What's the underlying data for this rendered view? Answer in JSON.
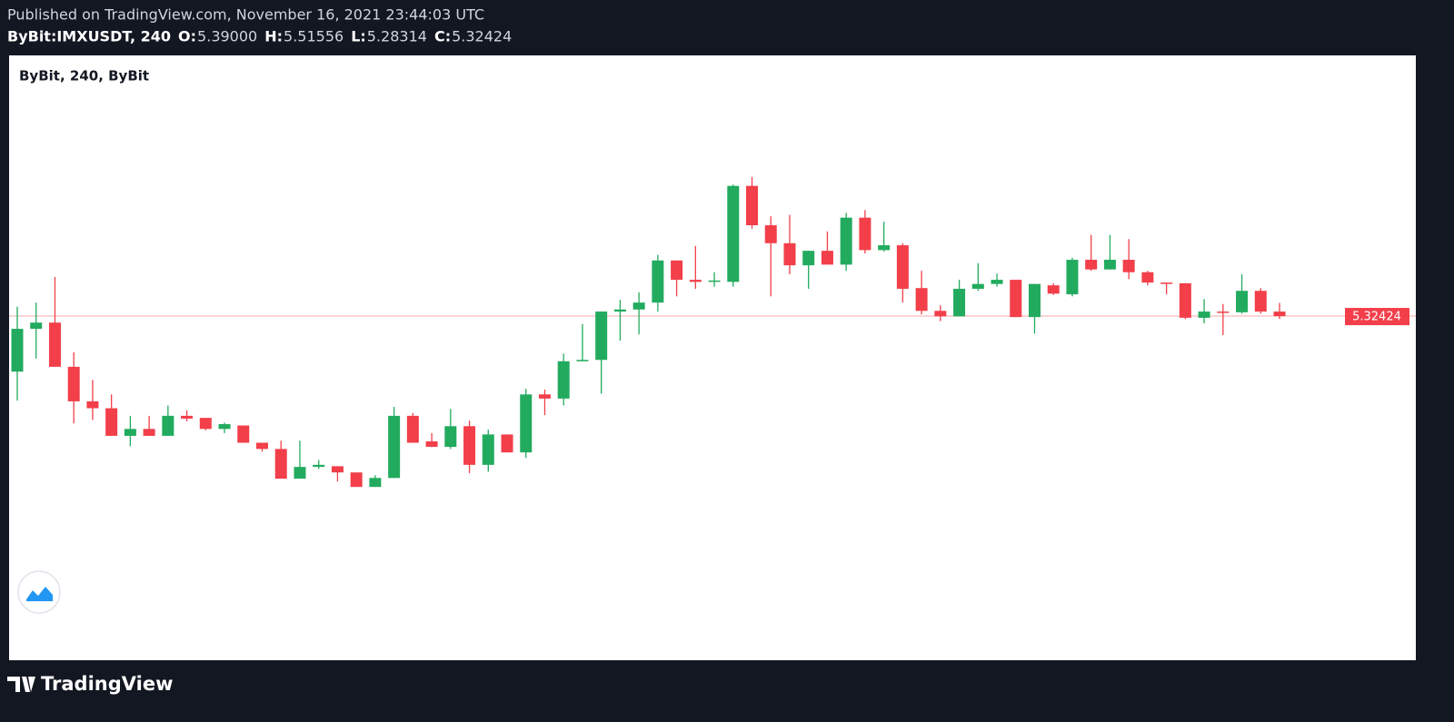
{
  "header": {
    "published": "Published on TradingView.com, November 16, 2021 23:44:03 UTC",
    "symbol": "ByBit:IMXUSDT, 240",
    "ohlc": [
      {
        "key": "O:",
        "text": "5.39000"
      },
      {
        "key": "H:",
        "text": "5.51556"
      },
      {
        "key": "L:",
        "text": "5.28314"
      },
      {
        "key": "C:",
        "text": "5.32424"
      }
    ]
  },
  "footer": {
    "brand": "TradingView"
  },
  "chart_data": {
    "type": "candlestick",
    "title": "ByBit, 240, ByBit",
    "up_color": "#22ab5e",
    "down_color": "#f23f4a",
    "ylim": [
      0.34,
      9.1
    ],
    "open": [
      4.52,
      5.14,
      5.23,
      4.59,
      4.09,
      3.99,
      3.59,
      3.69,
      3.59,
      3.88,
      3.85,
      3.69,
      3.74,
      3.49,
      3.4,
      2.97,
      3.14,
      3.15,
      3.06,
      2.85,
      2.98,
      3.88,
      3.51,
      3.43,
      3.73,
      3.17,
      3.61,
      3.35,
      4.19,
      4.13,
      4.67,
      4.69,
      5.39,
      5.42,
      5.52,
      6.13,
      5.85,
      5.82,
      5.82,
      7.21,
      6.64,
      6.38,
      6.06,
      6.27,
      6.07,
      6.75,
      6.28,
      6.35,
      5.73,
      5.4,
      5.32,
      5.72,
      5.79,
      5.85,
      5.31,
      5.77,
      5.64,
      6.14,
      6.0,
      6.14,
      5.96,
      5.81,
      5.8,
      5.3,
      5.39,
      5.38,
      5.69,
      5.39
    ],
    "high": [
      5.46,
      5.52,
      5.89,
      4.8,
      4.4,
      4.19,
      3.88,
      3.88,
      4.03,
      3.96,
      3.85,
      3.78,
      3.74,
      3.49,
      3.52,
      3.52,
      3.24,
      3.15,
      3.06,
      3.02,
      4.01,
      3.92,
      3.63,
      3.98,
      3.81,
      3.68,
      3.61,
      4.27,
      4.26,
      4.78,
      5.21,
      5.39,
      5.56,
      5.67,
      6.21,
      6.13,
      6.34,
      5.96,
      7.23,
      7.34,
      6.77,
      6.79,
      6.27,
      6.55,
      6.82,
      6.86,
      6.69,
      6.38,
      5.98,
      5.48,
      5.85,
      6.09,
      5.94,
      5.85,
      5.79,
      5.8,
      6.17,
      6.5,
      6.5,
      6.44,
      5.98,
      5.81,
      5.8,
      5.57,
      5.5,
      5.93,
      5.73,
      5.51556
    ],
    "low": [
      4.1,
      4.71,
      4.59,
      3.77,
      3.82,
      3.59,
      3.44,
      3.59,
      3.59,
      3.8,
      3.67,
      3.63,
      3.49,
      3.36,
      2.97,
      2.97,
      3.11,
      2.93,
      2.85,
      2.85,
      2.98,
      3.49,
      3.43,
      3.4,
      3.05,
      3.07,
      3.35,
      3.27,
      3.89,
      4.03,
      4.67,
      4.2,
      4.97,
      5.06,
      5.39,
      5.61,
      5.72,
      5.75,
      5.75,
      6.59,
      5.61,
      5.93,
      5.72,
      6.07,
      5.98,
      6.23,
      6.26,
      5.52,
      5.35,
      5.25,
      5.32,
      5.69,
      5.75,
      5.31,
      5.07,
      5.63,
      5.61,
      5.98,
      6.0,
      5.86,
      5.77,
      5.64,
      5.28,
      5.22,
      5.05,
      5.36,
      5.36,
      5.28314
    ],
    "close": [
      5.14,
      5.23,
      4.59,
      4.09,
      3.99,
      3.59,
      3.69,
      3.59,
      3.88,
      3.84,
      3.69,
      3.76,
      3.49,
      3.4,
      2.97,
      3.14,
      3.17,
      3.06,
      2.85,
      2.98,
      3.88,
      3.49,
      3.43,
      3.73,
      3.17,
      3.61,
      3.35,
      4.19,
      4.13,
      4.67,
      4.69,
      5.39,
      5.42,
      5.52,
      6.13,
      5.85,
      5.82,
      5.84,
      7.21,
      6.64,
      6.38,
      6.06,
      6.27,
      6.07,
      6.75,
      6.28,
      6.35,
      5.72,
      5.4,
      5.32,
      5.72,
      5.79,
      5.85,
      5.31,
      5.79,
      5.65,
      6.14,
      6.0,
      6.14,
      5.96,
      5.81,
      5.79,
      5.3,
      5.39,
      5.38,
      5.69,
      5.39,
      5.32424
    ],
    "last_price_label": "5.32424"
  }
}
